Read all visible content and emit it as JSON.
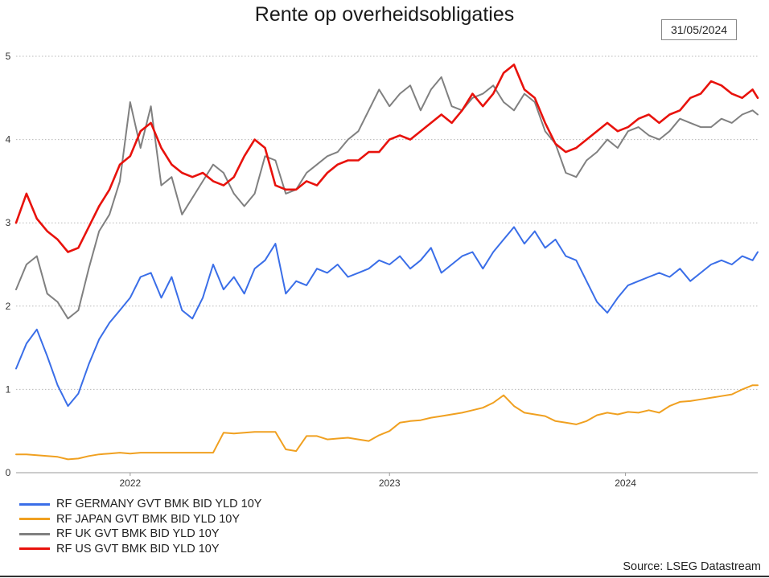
{
  "title": "Rente op overheidsobligaties",
  "date_badge": "31/05/2024",
  "source": "Source: LSEG Datastream",
  "chart_data": {
    "type": "line",
    "title": "Rente op overheidsobligaties",
    "xlabel": "",
    "ylabel": "",
    "x_ticks": [
      "2022",
      "2023",
      "2024"
    ],
    "y_ticks": [
      "0",
      "1",
      "2",
      "3",
      "4",
      "5"
    ],
    "xlim": [
      2021.56,
      2024.42
    ],
    "ylim": [
      0,
      5
    ],
    "grid": "horizontal dotted",
    "legend_position": "bottom-left",
    "x": [
      2021.56,
      2021.6,
      2021.64,
      2021.68,
      2021.72,
      2021.76,
      2021.8,
      2021.84,
      2021.88,
      2021.92,
      2021.96,
      2022.0,
      2022.04,
      2022.08,
      2022.12,
      2022.16,
      2022.2,
      2022.24,
      2022.28,
      2022.32,
      2022.36,
      2022.4,
      2022.44,
      2022.48,
      2022.52,
      2022.56,
      2022.6,
      2022.64,
      2022.68,
      2022.72,
      2022.76,
      2022.8,
      2022.84,
      2022.88,
      2022.92,
      2022.96,
      2023.0,
      2023.04,
      2023.08,
      2023.12,
      2023.16,
      2023.2,
      2023.24,
      2023.28,
      2023.32,
      2023.36,
      2023.4,
      2023.44,
      2023.48,
      2023.52,
      2023.56,
      2023.6,
      2023.64,
      2023.68,
      2023.72,
      2023.76,
      2023.8,
      2023.84,
      2023.88,
      2023.92,
      2023.96,
      2024.0,
      2024.04,
      2024.08,
      2024.12,
      2024.16,
      2024.2,
      2024.24,
      2024.28,
      2024.32,
      2024.36,
      2024.4,
      2024.42
    ],
    "series": [
      {
        "name": "RF GERMANY GVT BMK BID YLD 10Y",
        "color": "#3a6ee8",
        "values": [
          1.25,
          1.55,
          1.72,
          1.4,
          1.05,
          0.8,
          0.95,
          1.3,
          1.6,
          1.8,
          1.95,
          2.1,
          2.35,
          2.4,
          2.1,
          2.35,
          1.95,
          1.85,
          2.1,
          2.5,
          2.2,
          2.35,
          2.15,
          2.45,
          2.55,
          2.75,
          2.15,
          2.3,
          2.25,
          2.45,
          2.4,
          2.5,
          2.35,
          2.4,
          2.45,
          2.55,
          2.5,
          2.6,
          2.45,
          2.55,
          2.7,
          2.4,
          2.5,
          2.6,
          2.65,
          2.45,
          2.65,
          2.8,
          2.95,
          2.75,
          2.9,
          2.7,
          2.8,
          2.6,
          2.55,
          2.3,
          2.05,
          1.92,
          2.1,
          2.25,
          2.3,
          2.35,
          2.4,
          2.35,
          2.45,
          2.3,
          2.4,
          2.5,
          2.55,
          2.5,
          2.6,
          2.55,
          2.65
        ]
      },
      {
        "name": "RF JAPAN GVT BMK BID YLD 10Y",
        "color": "#f0a020",
        "values": [
          0.22,
          0.22,
          0.21,
          0.2,
          0.19,
          0.16,
          0.17,
          0.2,
          0.22,
          0.23,
          0.24,
          0.23,
          0.24,
          0.24,
          0.24,
          0.24,
          0.24,
          0.24,
          0.24,
          0.24,
          0.48,
          0.47,
          0.48,
          0.49,
          0.49,
          0.49,
          0.28,
          0.26,
          0.44,
          0.44,
          0.4,
          0.41,
          0.42,
          0.4,
          0.38,
          0.45,
          0.5,
          0.6,
          0.62,
          0.63,
          0.66,
          0.68,
          0.7,
          0.72,
          0.75,
          0.78,
          0.84,
          0.93,
          0.8,
          0.72,
          0.7,
          0.68,
          0.62,
          0.6,
          0.58,
          0.62,
          0.69,
          0.72,
          0.7,
          0.73,
          0.72,
          0.75,
          0.72,
          0.8,
          0.85,
          0.86,
          0.88,
          0.9,
          0.92,
          0.94,
          1.0,
          1.05,
          1.05
        ]
      },
      {
        "name": "RF UK GVT BMK BID YLD 10Y",
        "color": "#808080",
        "values": [
          2.2,
          2.5,
          2.6,
          2.15,
          2.05,
          1.85,
          1.95,
          2.45,
          2.9,
          3.1,
          3.5,
          4.45,
          3.9,
          4.4,
          3.45,
          3.55,
          3.1,
          3.3,
          3.5,
          3.7,
          3.6,
          3.35,
          3.2,
          3.35,
          3.8,
          3.75,
          3.35,
          3.4,
          3.6,
          3.7,
          3.8,
          3.85,
          4.0,
          4.1,
          4.35,
          4.6,
          4.4,
          4.55,
          4.65,
          4.35,
          4.6,
          4.75,
          4.4,
          4.35,
          4.5,
          4.55,
          4.65,
          4.45,
          4.35,
          4.55,
          4.45,
          4.1,
          3.95,
          3.6,
          3.55,
          3.75,
          3.85,
          4.0,
          3.9,
          4.1,
          4.15,
          4.05,
          4.0,
          4.1,
          4.25,
          4.2,
          4.15,
          4.15,
          4.25,
          4.2,
          4.3,
          4.35,
          4.3
        ]
      },
      {
        "name": "RF US GVT BMK BID YLD 10Y",
        "color": "#e8120c",
        "values": [
          3.0,
          3.35,
          3.05,
          2.9,
          2.8,
          2.65,
          2.7,
          2.95,
          3.2,
          3.4,
          3.7,
          3.8,
          4.1,
          4.2,
          3.9,
          3.7,
          3.6,
          3.55,
          3.6,
          3.5,
          3.45,
          3.55,
          3.8,
          4.0,
          3.9,
          3.45,
          3.4,
          3.4,
          3.5,
          3.45,
          3.6,
          3.7,
          3.75,
          3.75,
          3.85,
          3.85,
          4.0,
          4.05,
          4.0,
          4.1,
          4.2,
          4.3,
          4.2,
          4.35,
          4.55,
          4.4,
          4.55,
          4.8,
          4.9,
          4.6,
          4.5,
          4.2,
          3.95,
          3.85,
          3.9,
          4.0,
          4.1,
          4.2,
          4.1,
          4.15,
          4.25,
          4.3,
          4.2,
          4.3,
          4.35,
          4.5,
          4.55,
          4.7,
          4.65,
          4.55,
          4.5,
          4.6,
          4.5
        ]
      }
    ]
  }
}
